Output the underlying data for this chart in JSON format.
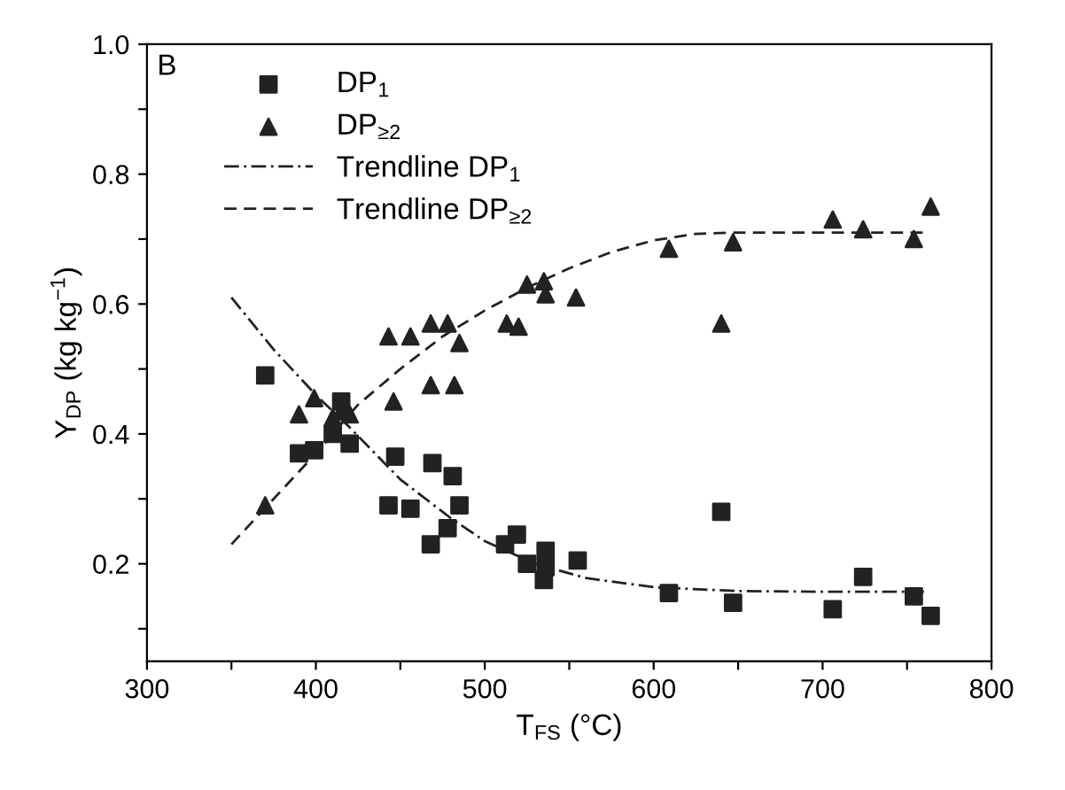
{
  "chart_data": {
    "type": "scatter",
    "xlabel": "T$_{FS}$ (°C)",
    "ylabel": "Y$_{DP}$ (kg kg$^{−1}$)",
    "annotations": [
      "B"
    ],
    "xlim": [
      300,
      800
    ],
    "ylim": [
      0.05,
      1.0
    ],
    "xticks": [
      300,
      {
        "value": 350,
        "label": null
      },
      400,
      {
        "value": 450,
        "label": null
      },
      500,
      {
        "value": 550,
        "label": null
      },
      600,
      {
        "value": 650,
        "label": null
      },
      700,
      {
        "value": 750,
        "label": null
      },
      800
    ],
    "yticks": [
      {
        "value": 0.1,
        "label": null
      },
      0.2,
      {
        "value": 0.3,
        "label": null
      },
      0.4,
      {
        "value": 0.5,
        "label": null
      },
      0.6,
      {
        "value": 0.7,
        "label": null
      },
      0.8,
      {
        "value": 0.9,
        "label": null
      },
      {
        "value": 1.0,
        "label": "1.0"
      }
    ],
    "grid": false,
    "legend": "top left",
    "series": [
      {
        "name": "DP$_{1}$",
        "marker": "square",
        "color": "#222222",
        "x": [
          370,
          390,
          399,
          415,
          410,
          420,
          443,
          447,
          456,
          469,
          468,
          481,
          485,
          478,
          512,
          519,
          525,
          536,
          536,
          535,
          555,
          609,
          640,
          647,
          706,
          724,
          754,
          764
        ],
        "values": [
          0.49,
          0.37,
          0.375,
          0.45,
          0.4,
          0.385,
          0.29,
          0.365,
          0.285,
          0.355,
          0.23,
          0.335,
          0.29,
          0.255,
          0.23,
          0.245,
          0.2,
          0.22,
          0.195,
          0.175,
          0.205,
          0.155,
          0.28,
          0.14,
          0.13,
          0.18,
          0.15,
          0.12
        ]
      },
      {
        "name": "DP$_{≥2}$",
        "marker": "triangle",
        "color": "#222222",
        "x": [
          370,
          390,
          399,
          410,
          415,
          420,
          446,
          468,
          482,
          443,
          456,
          468,
          478,
          485,
          513,
          520,
          525,
          535,
          536,
          554,
          609,
          640,
          647,
          706,
          724,
          754,
          764
        ],
        "values": [
          0.29,
          0.43,
          0.455,
          0.425,
          0.435,
          0.43,
          0.45,
          0.475,
          0.475,
          0.55,
          0.55,
          0.57,
          0.57,
          0.54,
          0.57,
          0.565,
          0.63,
          0.635,
          0.615,
          0.61,
          0.685,
          0.57,
          0.695,
          0.73,
          0.715,
          0.7,
          0.75
        ]
      },
      {
        "name": "Trendline DP$_{1}$",
        "type": "line",
        "marker": "none",
        "line_style": "dashdot",
        "color": "#222222",
        "x": [
          350,
          375,
          400,
          420,
          450,
          480,
          500,
          530,
          560,
          600,
          650,
          700,
          760
        ],
        "values": [
          0.61,
          0.53,
          0.46,
          0.41,
          0.33,
          0.27,
          0.235,
          0.2,
          0.178,
          0.164,
          0.158,
          0.157,
          0.157
        ]
      },
      {
        "name": "Trendline DP$_{≥2}$",
        "type": "line",
        "marker": "none",
        "line_style": "dashed",
        "color": "#222222",
        "x": [
          350,
          375,
          400,
          425,
          450,
          475,
          500,
          525,
          550,
          575,
          600,
          625,
          645,
          760
        ],
        "values": [
          0.23,
          0.3,
          0.37,
          0.445,
          0.5,
          0.55,
          0.59,
          0.625,
          0.655,
          0.68,
          0.698,
          0.708,
          0.71,
          0.71
        ]
      }
    ]
  }
}
